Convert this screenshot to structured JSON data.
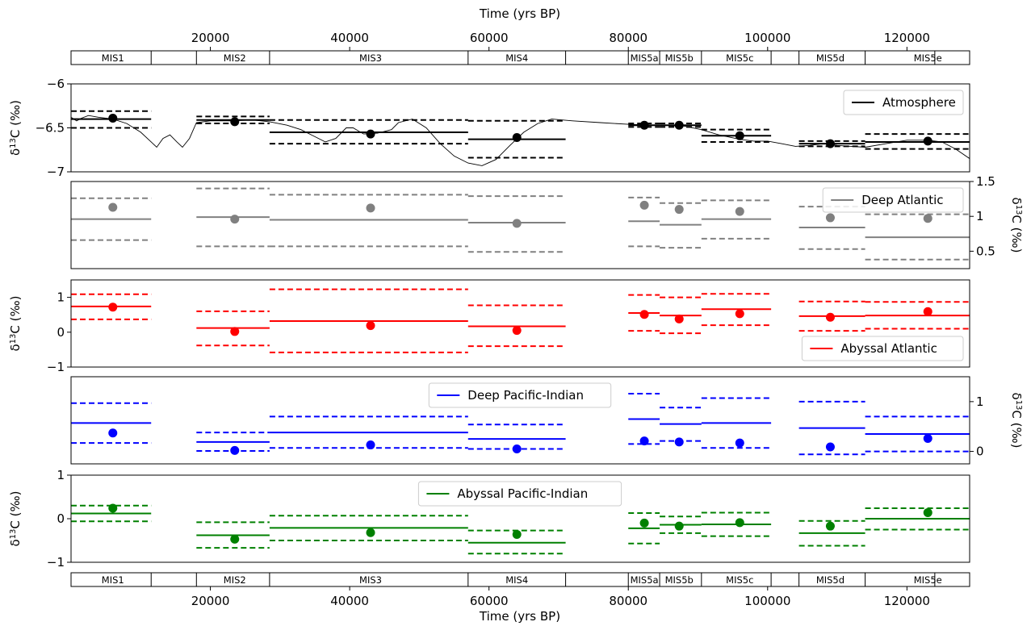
{
  "figure": {
    "top_axis_label": "Time (yrs BP)",
    "bottom_axis_label": "Time (yrs BP)",
    "x_ticks": [
      20000,
      40000,
      60000,
      80000,
      100000,
      120000
    ],
    "x_range": [
      0,
      129000
    ]
  },
  "mis_bands": {
    "boundaries": [
      0,
      11500,
      18000,
      28500,
      57000,
      71000,
      80000,
      84500,
      90500,
      100500,
      104500,
      114000,
      124000,
      129000
    ],
    "labels": [
      {
        "text": "MIS1",
        "x": 6000
      },
      {
        "text": "MIS2",
        "x": 23500
      },
      {
        "text": "MIS3",
        "x": 43000
      },
      {
        "text": "MIS4",
        "x": 64000
      },
      {
        "text": "MIS5a",
        "x": 82300
      },
      {
        "text": "MIS5b",
        "x": 87300
      },
      {
        "text": "MIS5c",
        "x": 96000
      },
      {
        "text": "MIS5d",
        "x": 109000
      },
      {
        "text": "MIS5e",
        "x": 123000
      }
    ]
  },
  "chart_data": [
    {
      "type": "line",
      "name": "Atmosphere",
      "color": "#000000",
      "ylabel": "δ13C (‰)",
      "ylabel_side": "left",
      "ylim": [
        -7.0,
        -6.0
      ],
      "yticks": [
        -6.0,
        -6.5,
        -7.0
      ],
      "legend": "top-right",
      "curve": [
        [
          0,
          -6.38
        ],
        [
          800,
          -6.42
        ],
        [
          1500,
          -6.39
        ],
        [
          2500,
          -6.36
        ],
        [
          4000,
          -6.38
        ],
        [
          6000,
          -6.4
        ],
        [
          8000,
          -6.45
        ],
        [
          10000,
          -6.55
        ],
        [
          11500,
          -6.66
        ],
        [
          12300,
          -6.72
        ],
        [
          13200,
          -6.62
        ],
        [
          14200,
          -6.58
        ],
        [
          15200,
          -6.66
        ],
        [
          16000,
          -6.72
        ],
        [
          17000,
          -6.62
        ],
        [
          18000,
          -6.44
        ],
        [
          20000,
          -6.42
        ],
        [
          23000,
          -6.42
        ],
        [
          26000,
          -6.41
        ],
        [
          28500,
          -6.43
        ],
        [
          31000,
          -6.47
        ],
        [
          33000,
          -6.52
        ],
        [
          35000,
          -6.6
        ],
        [
          36500,
          -6.66
        ],
        [
          38000,
          -6.62
        ],
        [
          39500,
          -6.5
        ],
        [
          40500,
          -6.5
        ],
        [
          42000,
          -6.57
        ],
        [
          44000,
          -6.56
        ],
        [
          46000,
          -6.52
        ],
        [
          47000,
          -6.44
        ],
        [
          49000,
          -6.4
        ],
        [
          51000,
          -6.5
        ],
        [
          53000,
          -6.68
        ],
        [
          55000,
          -6.82
        ],
        [
          57000,
          -6.9
        ],
        [
          59000,
          -6.93
        ],
        [
          61000,
          -6.86
        ],
        [
          63000,
          -6.7
        ],
        [
          65000,
          -6.55
        ],
        [
          67000,
          -6.45
        ],
        [
          69000,
          -6.4
        ],
        [
          72000,
          -6.42
        ],
        [
          76000,
          -6.44
        ],
        [
          80000,
          -6.46
        ],
        [
          84000,
          -6.47
        ],
        [
          88000,
          -6.48
        ],
        [
          90500,
          -6.52
        ],
        [
          93000,
          -6.58
        ],
        [
          96000,
          -6.63
        ],
        [
          98000,
          -6.65
        ],
        [
          100000,
          -6.65
        ],
        [
          102000,
          -6.68
        ],
        [
          104000,
          -6.71
        ],
        [
          106000,
          -6.7
        ],
        [
          108000,
          -6.68
        ],
        [
          110000,
          -6.7
        ],
        [
          112000,
          -6.71
        ],
        [
          114000,
          -6.72
        ],
        [
          117000,
          -6.68
        ],
        [
          120000,
          -6.64
        ],
        [
          123000,
          -6.64
        ],
        [
          125000,
          -6.66
        ],
        [
          127000,
          -6.74
        ],
        [
          129000,
          -6.85
        ]
      ],
      "segments": [
        {
          "x0": 0,
          "x1": 11500,
          "mean": -6.4,
          "lo": -6.5,
          "hi": -6.31
        },
        {
          "x0": 18000,
          "x1": 28500,
          "mean": -6.41,
          "lo": -6.45,
          "hi": -6.37
        },
        {
          "x0": 28500,
          "x1": 57000,
          "mean": -6.55,
          "lo": -6.68,
          "hi": -6.41
        },
        {
          "x0": 57000,
          "x1": 71000,
          "mean": -6.63,
          "lo": -6.84,
          "hi": -6.42
        },
        {
          "x0": 80000,
          "x1": 84500,
          "mean": -6.47,
          "lo": -6.49,
          "hi": -6.45
        },
        {
          "x0": 84500,
          "x1": 90500,
          "mean": -6.47,
          "lo": -6.49,
          "hi": -6.45
        },
        {
          "x0": 90500,
          "x1": 100500,
          "mean": -6.59,
          "lo": -6.66,
          "hi": -6.52
        },
        {
          "x0": 104500,
          "x1": 114000,
          "mean": -6.68,
          "lo": -6.71,
          "hi": -6.65
        },
        {
          "x0": 114000,
          "x1": 129000,
          "mean": -6.66,
          "lo": -6.74,
          "hi": -6.57
        }
      ],
      "points": [
        [
          6000,
          -6.39
        ],
        [
          23500,
          -6.43
        ],
        [
          43000,
          -6.57
        ],
        [
          64000,
          -6.61
        ],
        [
          82300,
          -6.47
        ],
        [
          87300,
          -6.47
        ],
        [
          96000,
          -6.59
        ],
        [
          109000,
          -6.68
        ],
        [
          123000,
          -6.65
        ]
      ]
    },
    {
      "type": "line",
      "name": "Deep Atlantic",
      "color": "#808080",
      "ylabel": "δ13C (‰)",
      "ylabel_side": "right",
      "ylim": [
        0.25,
        1.5
      ],
      "yticks": [
        0.5,
        1.0,
        1.5
      ],
      "legend": "top-right",
      "segments": [
        {
          "x0": 0,
          "x1": 11500,
          "mean": 0.96,
          "lo": 0.66,
          "hi": 1.26
        },
        {
          "x0": 18000,
          "x1": 28500,
          "mean": 0.99,
          "lo": 0.57,
          "hi": 1.4
        },
        {
          "x0": 28500,
          "x1": 57000,
          "mean": 0.95,
          "lo": 0.57,
          "hi": 1.31
        },
        {
          "x0": 57000,
          "x1": 71000,
          "mean": 0.91,
          "lo": 0.49,
          "hi": 1.29
        },
        {
          "x0": 80000,
          "x1": 84500,
          "mean": 0.93,
          "lo": 0.57,
          "hi": 1.27
        },
        {
          "x0": 84500,
          "x1": 90500,
          "mean": 0.88,
          "lo": 0.55,
          "hi": 1.19
        },
        {
          "x0": 90500,
          "x1": 100500,
          "mean": 0.96,
          "lo": 0.68,
          "hi": 1.23
        },
        {
          "x0": 104500,
          "x1": 114000,
          "mean": 0.84,
          "lo": 0.53,
          "hi": 1.14
        },
        {
          "x0": 114000,
          "x1": 129000,
          "mean": 0.7,
          "lo": 0.38,
          "hi": 1.03
        }
      ],
      "points": [
        [
          6000,
          1.13
        ],
        [
          23500,
          0.96
        ],
        [
          43000,
          1.12
        ],
        [
          64000,
          0.9
        ],
        [
          82300,
          1.16
        ],
        [
          87300,
          1.1
        ],
        [
          96000,
          1.07
        ],
        [
          109000,
          0.98
        ],
        [
          123000,
          0.97
        ]
      ]
    },
    {
      "type": "line",
      "name": "Abyssal Atlantic",
      "color": "#ff0000",
      "ylabel": "δ13C (‰)",
      "ylabel_side": "left",
      "ylim": [
        -1.0,
        1.5
      ],
      "yticks": [
        1,
        0,
        -1
      ],
      "legend": "bottom-right",
      "segments": [
        {
          "x0": 0,
          "x1": 11500,
          "mean": 0.74,
          "lo": 0.37,
          "hi": 1.09
        },
        {
          "x0": 18000,
          "x1": 28500,
          "mean": 0.12,
          "lo": -0.38,
          "hi": 0.6
        },
        {
          "x0": 28500,
          "x1": 57000,
          "mean": 0.32,
          "lo": -0.58,
          "hi": 1.23
        },
        {
          "x0": 57000,
          "x1": 71000,
          "mean": 0.17,
          "lo": -0.4,
          "hi": 0.77
        },
        {
          "x0": 80000,
          "x1": 84500,
          "mean": 0.55,
          "lo": 0.04,
          "hi": 1.07
        },
        {
          "x0": 84500,
          "x1": 90500,
          "mean": 0.48,
          "lo": -0.03,
          "hi": 1.0
        },
        {
          "x0": 90500,
          "x1": 100500,
          "mean": 0.66,
          "lo": 0.2,
          "hi": 1.1
        },
        {
          "x0": 104500,
          "x1": 114000,
          "mean": 0.46,
          "lo": 0.04,
          "hi": 0.88
        },
        {
          "x0": 114000,
          "x1": 129000,
          "mean": 0.48,
          "lo": 0.1,
          "hi": 0.87
        }
      ],
      "points": [
        [
          6000,
          0.72
        ],
        [
          23500,
          0.02
        ],
        [
          43000,
          0.19
        ],
        [
          64000,
          0.05
        ],
        [
          82300,
          0.51
        ],
        [
          87300,
          0.38
        ],
        [
          96000,
          0.53
        ],
        [
          109000,
          0.43
        ],
        [
          123000,
          0.59
        ]
      ]
    },
    {
      "type": "line",
      "name": "Deep Pacific-Indian",
      "color": "#0000ff",
      "ylabel": "δ13C (‰)",
      "ylabel_side": "right",
      "ylim": [
        -0.25,
        1.5
      ],
      "yticks": [
        1,
        0
      ],
      "legend": "top-center",
      "segments": [
        {
          "x0": 0,
          "x1": 11500,
          "mean": 0.57,
          "lo": 0.17,
          "hi": 0.97
        },
        {
          "x0": 18000,
          "x1": 28500,
          "mean": 0.19,
          "lo": 0.01,
          "hi": 0.38
        },
        {
          "x0": 28500,
          "x1": 57000,
          "mean": 0.38,
          "lo": 0.07,
          "hi": 0.7
        },
        {
          "x0": 57000,
          "x1": 71000,
          "mean": 0.25,
          "lo": 0.05,
          "hi": 0.54
        },
        {
          "x0": 80000,
          "x1": 84500,
          "mean": 0.65,
          "lo": 0.15,
          "hi": 1.16
        },
        {
          "x0": 84500,
          "x1": 90500,
          "mean": 0.55,
          "lo": 0.21,
          "hi": 0.88
        },
        {
          "x0": 90500,
          "x1": 100500,
          "mean": 0.57,
          "lo": 0.07,
          "hi": 1.07
        },
        {
          "x0": 104500,
          "x1": 114000,
          "mean": 0.47,
          "lo": -0.06,
          "hi": 1.0
        },
        {
          "x0": 114000,
          "x1": 129000,
          "mean": 0.35,
          "lo": 0.0,
          "hi": 0.7
        }
      ],
      "points": [
        [
          6000,
          0.37
        ],
        [
          23500,
          0.02
        ],
        [
          43000,
          0.13
        ],
        [
          64000,
          0.05
        ],
        [
          82300,
          0.21
        ],
        [
          87300,
          0.19
        ],
        [
          96000,
          0.17
        ],
        [
          109000,
          0.09
        ],
        [
          123000,
          0.26
        ]
      ]
    },
    {
      "type": "line",
      "name": "Abyssal Pacific-Indian",
      "color": "#008000",
      "ylabel": "δ13C (‰)",
      "ylabel_side": "left",
      "ylim": [
        -1.0,
        1.0
      ],
      "yticks": [
        1,
        0,
        -1
      ],
      "legend": "top-center",
      "segments": [
        {
          "x0": 0,
          "x1": 11500,
          "mean": 0.12,
          "lo": -0.06,
          "hi": 0.3
        },
        {
          "x0": 18000,
          "x1": 28500,
          "mean": -0.38,
          "lo": -0.67,
          "hi": -0.08
        },
        {
          "x0": 28500,
          "x1": 57000,
          "mean": -0.21,
          "lo": -0.5,
          "hi": 0.07
        },
        {
          "x0": 57000,
          "x1": 71000,
          "mean": -0.55,
          "lo": -0.8,
          "hi": -0.27
        },
        {
          "x0": 80000,
          "x1": 84500,
          "mean": -0.22,
          "lo": -0.57,
          "hi": 0.13
        },
        {
          "x0": 84500,
          "x1": 90500,
          "mean": -0.14,
          "lo": -0.33,
          "hi": 0.05
        },
        {
          "x0": 90500,
          "x1": 100500,
          "mean": -0.13,
          "lo": -0.4,
          "hi": 0.14
        },
        {
          "x0": 104500,
          "x1": 114000,
          "mean": -0.33,
          "lo": -0.62,
          "hi": -0.05
        },
        {
          "x0": 114000,
          "x1": 129000,
          "mean": 0.0,
          "lo": -0.25,
          "hi": 0.24
        }
      ],
      "points": [
        [
          6000,
          0.24
        ],
        [
          23500,
          -0.47
        ],
        [
          43000,
          -0.32
        ],
        [
          64000,
          -0.36
        ],
        [
          82300,
          -0.1
        ],
        [
          87300,
          -0.17
        ],
        [
          96000,
          -0.09
        ],
        [
          109000,
          -0.17
        ],
        [
          123000,
          0.14
        ]
      ]
    }
  ]
}
